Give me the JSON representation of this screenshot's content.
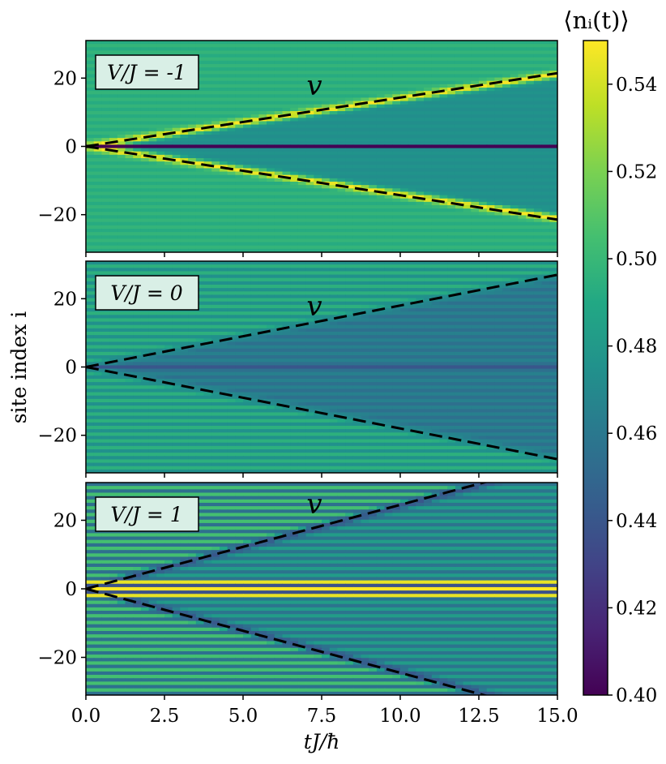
{
  "chart_data": {
    "type": "heatmap",
    "xlabel": "tJ/ħ",
    "ylabel": "site index i",
    "xlim": [
      0,
      15
    ],
    "ylim": [
      -31,
      31
    ],
    "x_ticks": [
      0.0,
      2.5,
      5.0,
      7.5,
      10.0,
      12.5,
      15.0
    ],
    "x_tick_labels": [
      "0.0",
      "2.5",
      "5.0",
      "7.5",
      "10.0",
      "12.5",
      "15.0"
    ],
    "y_ticks": [
      -20,
      0,
      20
    ],
    "y_tick_labels": [
      "−20",
      "0",
      "20"
    ],
    "colormap": "viridis",
    "colorbar": {
      "title": "⟨nᵢ(t)⟩",
      "range": [
        0.4,
        0.55
      ],
      "ticks": [
        0.4,
        0.42,
        0.44,
        0.46,
        0.48,
        0.5,
        0.52,
        0.54
      ],
      "tick_labels": [
        "0.40",
        "0.42",
        "0.44",
        "0.46",
        "0.48",
        "0.50",
        "0.52",
        "0.54"
      ]
    },
    "panels": [
      {
        "label": "V/J = -1",
        "light_cone_label": "v",
        "light_cone_slope": 1.43,
        "background": 0.495,
        "center_value": 0.4,
        "front_value": 0.55,
        "inside_value": 0.475,
        "center_oscillation": 0.0,
        "row_oscillation": 0.003
      },
      {
        "label": "V/J = 0",
        "light_cone_label": "v",
        "light_cone_slope": 1.8,
        "background": 0.485,
        "center_value": 0.44,
        "front_value": 0.47,
        "inside_value": 0.46,
        "center_oscillation": 0.0,
        "row_oscillation": 0.01
      },
      {
        "label": "V/J = 1",
        "light_cone_label": "v",
        "light_cone_slope": 2.45,
        "background": 0.48,
        "center_value": 0.55,
        "front_value": 0.44,
        "inside_value": 0.47,
        "center_oscillation": 0.07,
        "row_oscillation": 0.025
      }
    ]
  },
  "colors": {
    "dashed_line": "#000000",
    "label_box_fill": "#d9efe6",
    "label_box_stroke": "#000000"
  }
}
